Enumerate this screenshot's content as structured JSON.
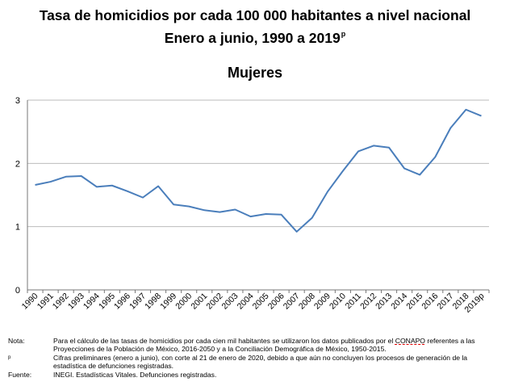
{
  "title_line1": "Tasa de homicidios por cada 100 000 habitantes a nivel nacional",
  "title_line2": "Enero a junio, 1990 a 2019",
  "title_line2_sup": "p",
  "subtitle": "Mujeres",
  "chart_data": {
    "type": "line",
    "title": "Tasa de homicidios por cada 100 000 habitantes a nivel nacional, Enero a junio, 1990 a 2019p",
    "subtitle": "Mujeres",
    "xlabel": "",
    "ylabel": "",
    "ylim": [
      0,
      3
    ],
    "yticks": [
      0,
      1,
      2,
      3
    ],
    "grid": "horizontal",
    "line_color": "#4a7ebb",
    "categories": [
      "1990",
      "1991",
      "1992",
      "1993",
      "1994",
      "1995",
      "1996",
      "1997",
      "1998",
      "1999",
      "2000",
      "2001",
      "2002",
      "2003",
      "2004",
      "2005",
      "2006",
      "2007",
      "2008",
      "2009",
      "2010",
      "2011",
      "2012",
      "2013",
      "2014",
      "2015",
      "2016",
      "2017",
      "2018",
      "2019p"
    ],
    "series": [
      {
        "name": "Mujeres",
        "values": [
          1.66,
          1.71,
          1.79,
          1.8,
          1.63,
          1.65,
          1.56,
          1.46,
          1.64,
          1.35,
          1.32,
          1.26,
          1.23,
          1.27,
          1.16,
          1.2,
          1.19,
          0.92,
          1.14,
          1.55,
          1.88,
          2.19,
          2.28,
          2.25,
          1.92,
          1.82,
          2.1,
          2.56,
          2.85,
          2.75
        ]
      }
    ]
  },
  "notes": {
    "nota_label": "Nota:",
    "nota_text_before": "Para el cálculo de las tasas de homicidios por cada cien mil habitantes se utilizaron los datos publicados por el",
    "nota_text_conapo": "CONAPO",
    "nota_text_after": "referentes a las Proyecciones de la Población de México, 2016-2050 y a la Conciliación Demográfica de México, 1950-2015.",
    "p_label": "p",
    "p_text": "Cifras preliminares (enero a junio), con corte al 21 de enero de 2020, debido a que aún no concluyen los procesos de generación de la estadística de defunciones registradas.",
    "fuente_label": "Fuente:",
    "fuente_text": "INEGI. Estadísticas Vitales. Defunciones registradas."
  }
}
